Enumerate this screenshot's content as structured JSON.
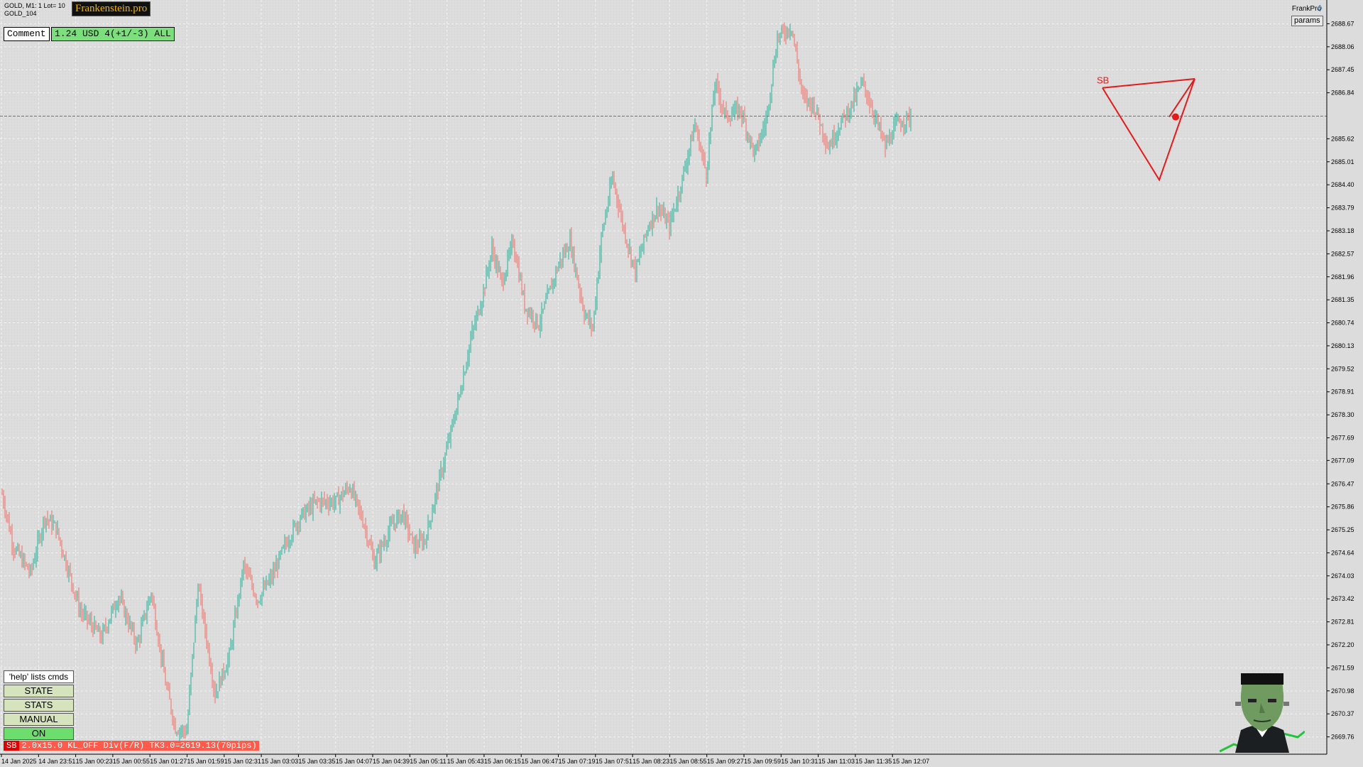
{
  "window": {
    "symbol_line": "GOLD, M1:",
    "lot_text": "1 Lot= 10",
    "account_line": "GOLD_104",
    "brand": "Frankenstein.pro",
    "corner_title": "FrankPro",
    "params_label": "params"
  },
  "header": {
    "comment_label": "Comment",
    "pnl_text": "1.24 USD 4(+1/-3) ALL"
  },
  "panel": {
    "help_text": "'help' lists cmds",
    "buttons": [
      {
        "label": "STATE"
      },
      {
        "label": "STATS"
      },
      {
        "label": "MANUAL"
      },
      {
        "label": "ON"
      }
    ]
  },
  "status": {
    "tag": "SB",
    "text": "2.0x15.0 KL_OFF Div(F/R) TK3.0=2619.13(70pips)"
  },
  "pattern": {
    "label": "SB",
    "points": [
      [
        400,
        2686.97
      ],
      [
        440,
        2684.53
      ],
      [
        465,
        2687.21
      ],
      [
        447,
        2686.2
      ]
    ]
  },
  "chart_data": {
    "type": "candlestick",
    "symbol": "GOLD",
    "timeframe": "M1",
    "ylim": [
      2669.3,
      2689.3
    ],
    "y_ticks": [
      2688.67,
      2688.06,
      2687.45,
      2686.84,
      2685.62,
      2685.01,
      2684.4,
      2683.79,
      2683.18,
      2682.57,
      2681.96,
      2681.35,
      2680.74,
      2680.13,
      2679.52,
      2678.91,
      2678.3,
      2677.69,
      2677.09,
      2676.47,
      2675.86,
      2675.25,
      2674.64,
      2674.03,
      2673.42,
      2672.81,
      2672.2,
      2671.59,
      2670.98,
      2670.37,
      2669.76
    ],
    "current_price": 2686.22,
    "x_labels": [
      "14 Jan 2025",
      "14 Jan 23:51",
      "15 Jan 00:23",
      "15 Jan 00:55",
      "15 Jan 01:27",
      "15 Jan 01:59",
      "15 Jan 02:31",
      "15 Jan 03:03",
      "15 Jan 03:35",
      "15 Jan 04:07",
      "15 Jan 04:39",
      "15 Jan 05:11",
      "15 Jan 05:43",
      "15 Jan 06:15",
      "15 Jan 06:47",
      "15 Jan 07:19",
      "15 Jan 07:51",
      "15 Jan 08:23",
      "15 Jan 08:55",
      "15 Jan 09:27",
      "15 Jan 09:59",
      "15 Jan 10:31",
      "15 Jan 11:03",
      "15 Jan 11:35",
      "15 Jan 12:07"
    ],
    "bars_per_label": 16,
    "close_path": [
      [
        0,
        2676.2
      ],
      [
        8,
        2674.8
      ],
      [
        20,
        2674.1
      ],
      [
        30,
        2675.6
      ],
      [
        38,
        2675.3
      ],
      [
        55,
        2673.1
      ],
      [
        70,
        2672.4
      ],
      [
        82,
        2673.5
      ],
      [
        95,
        2672.2
      ],
      [
        105,
        2673.6
      ],
      [
        115,
        2671.2
      ],
      [
        122,
        2670.0
      ],
      [
        130,
        2669.9
      ],
      [
        138,
        2673.8
      ],
      [
        150,
        2670.9
      ],
      [
        160,
        2671.9
      ],
      [
        170,
        2674.3
      ],
      [
        180,
        2673.4
      ],
      [
        190,
        2674.0
      ],
      [
        200,
        2674.9
      ],
      [
        210,
        2675.6
      ],
      [
        222,
        2676.0
      ],
      [
        235,
        2676.0
      ],
      [
        245,
        2676.4
      ],
      [
        255,
        2675.4
      ],
      [
        262,
        2674.4
      ],
      [
        275,
        2675.4
      ],
      [
        282,
        2675.7
      ],
      [
        290,
        2674.8
      ],
      [
        298,
        2675.0
      ],
      [
        312,
        2677.2
      ],
      [
        322,
        2678.8
      ],
      [
        330,
        2680.3
      ],
      [
        338,
        2681.4
      ],
      [
        345,
        2682.7
      ],
      [
        352,
        2681.8
      ],
      [
        360,
        2682.9
      ],
      [
        368,
        2681.2
      ],
      [
        378,
        2680.7
      ],
      [
        392,
        2682.3
      ],
      [
        400,
        2682.9
      ],
      [
        410,
        2681.0
      ],
      [
        416,
        2680.6
      ],
      [
        422,
        2683.0
      ],
      [
        430,
        2684.6
      ],
      [
        438,
        2683.2
      ],
      [
        446,
        2682.1
      ],
      [
        455,
        2683.3
      ],
      [
        462,
        2683.8
      ],
      [
        470,
        2683.3
      ],
      [
        478,
        2684.4
      ],
      [
        488,
        2686.0
      ],
      [
        496,
        2684.7
      ],
      [
        502,
        2687.1
      ],
      [
        510,
        2686.2
      ],
      [
        520,
        2686.4
      ],
      [
        530,
        2685.2
      ],
      [
        538,
        2686.1
      ],
      [
        546,
        2688.3
      ],
      [
        556,
        2688.6
      ],
      [
        564,
        2686.7
      ],
      [
        572,
        2686.5
      ],
      [
        582,
        2685.4
      ],
      [
        590,
        2686.0
      ],
      [
        598,
        2686.5
      ],
      [
        606,
        2687.1
      ],
      [
        614,
        2686.3
      ],
      [
        622,
        2685.4
      ],
      [
        630,
        2686.0
      ],
      [
        640,
        2686.2
      ]
    ],
    "candle_style": {
      "bull_color": "#3fb9a4",
      "bear_color": "#ef7e76"
    },
    "price_line_color": "#1f9e68"
  }
}
